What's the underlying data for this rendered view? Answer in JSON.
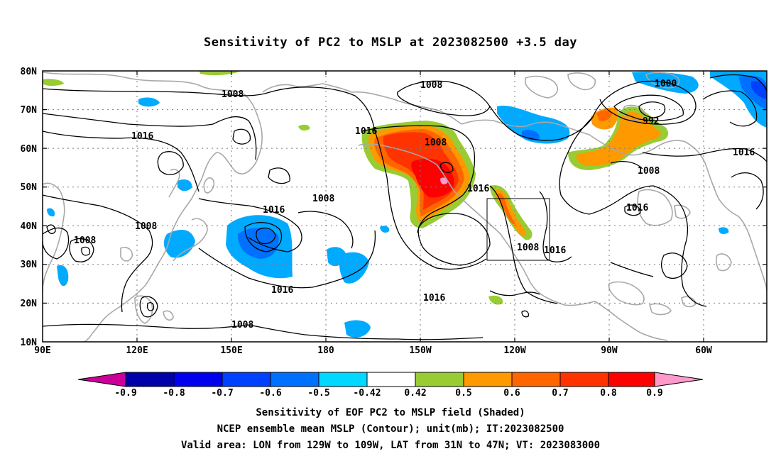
{
  "title": "Sensitivity of PC2 to MSLP at 2023082500 +3.5 day",
  "map": {
    "lat_labels": [
      "80N",
      "70N",
      "60N",
      "50N",
      "40N",
      "30N",
      "20N",
      "10N"
    ],
    "lon_labels": [
      "90E",
      "120E",
      "150E",
      "180",
      "150W",
      "120W",
      "90W",
      "60W"
    ],
    "contour_labels": [
      "1008",
      "1016",
      "1008",
      "1016",
      "1000",
      "992",
      "1008",
      "1016",
      "1016",
      "1008",
      "1008",
      "1016",
      "1016",
      "1008",
      "1016",
      "1008",
      "1016",
      "1016",
      "1008",
      "1008"
    ]
  },
  "colorbar": {
    "labels": [
      "-0.9",
      "-0.8",
      "-0.7",
      "-0.6",
      "-0.5",
      "-0.42",
      "0.42",
      "0.5",
      "0.6",
      "0.7",
      "0.8",
      "0.9"
    ],
    "colors": [
      "#0000aa",
      "#0000ee",
      "#0040ff",
      "#0070ff",
      "#00aaff",
      "#00d8ff",
      "#ffffff",
      "#99cc33",
      "#ff9900",
      "#ff6600",
      "#ff3300",
      "#ff0000"
    ],
    "low_arrow_color": "#cc0099",
    "high_arrow_color": "#ff99cc"
  },
  "captions": {
    "line1": "Sensitivity of EOF PC2 to MSLP field (Shaded)",
    "line2": "NCEP ensemble mean MSLP (Contour); unit(mb); IT:2023082500",
    "line3": "Valid area: LON from 129W to 109W, LAT from 31N to 47N; VT: 2023083000"
  }
}
